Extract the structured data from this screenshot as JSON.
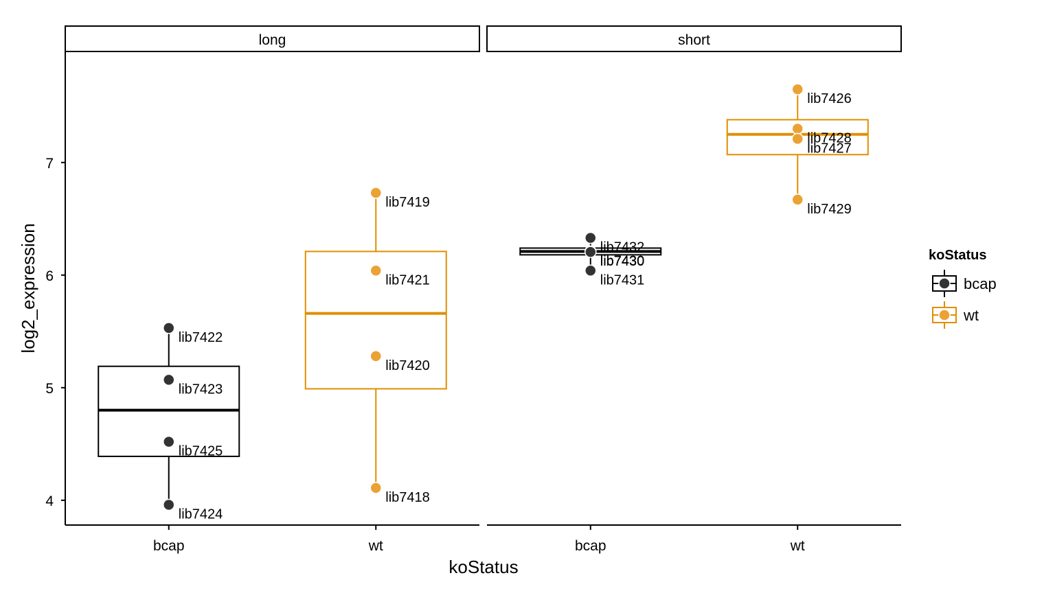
{
  "chart_data": {
    "type": "boxplot",
    "xlabel": "koStatus",
    "ylabel": "log2_expression",
    "ylim": [
      3.78,
      7.98
    ],
    "yticks": [
      4,
      5,
      6,
      7
    ],
    "categories": [
      "bcap",
      "wt"
    ],
    "legend": {
      "title": "koStatus",
      "position": "right",
      "entries": [
        {
          "label": "bcap",
          "color": "#000000",
          "point_color": "#333333"
        },
        {
          "label": "wt",
          "color": "#E08E00",
          "point_color": "#EBA235"
        }
      ]
    },
    "panels": [
      {
        "strip": "long",
        "groups": [
          {
            "category": "bcap",
            "box": {
              "min": 3.96,
              "q1": 4.39,
              "median": 4.8,
              "q3": 5.19,
              "max": 5.53
            },
            "points": [
              {
                "label": "lib7422",
                "y": 5.53
              },
              {
                "label": "lib7423",
                "y": 5.07
              },
              {
                "label": "lib7425",
                "y": 4.52
              },
              {
                "label": "lib7424",
                "y": 3.96
              }
            ]
          },
          {
            "category": "wt",
            "box": {
              "min": 4.11,
              "q1": 4.99,
              "median": 5.66,
              "q3": 6.21,
              "max": 6.73
            },
            "points": [
              {
                "label": "lib7419",
                "y": 6.73
              },
              {
                "label": "lib7421",
                "y": 6.04
              },
              {
                "label": "lib7420",
                "y": 5.28
              },
              {
                "label": "lib7418",
                "y": 4.11
              }
            ]
          }
        ]
      },
      {
        "strip": "short",
        "groups": [
          {
            "category": "bcap",
            "box": {
              "min": 6.04,
              "q1": 6.18,
              "median": 6.21,
              "q3": 6.24,
              "max": 6.33
            },
            "points": [
              {
                "label": "lib7432",
                "y": 6.33
              },
              {
                "label": "lib7430",
                "y": 6.21
              },
              {
                "label": "lib7430",
                "y": 6.205
              },
              {
                "label": "lib7431",
                "y": 6.04
              }
            ]
          },
          {
            "category": "wt",
            "box": {
              "min": 6.67,
              "q1": 7.07,
              "median": 7.25,
              "q3": 7.38,
              "max": 7.65
            },
            "points": [
              {
                "label": "lib7426",
                "y": 7.65
              },
              {
                "label": "lib7428",
                "y": 7.3
              },
              {
                "label": "lib7427",
                "y": 7.21
              },
              {
                "label": "lib7429",
                "y": 6.67
              }
            ]
          }
        ]
      }
    ]
  }
}
